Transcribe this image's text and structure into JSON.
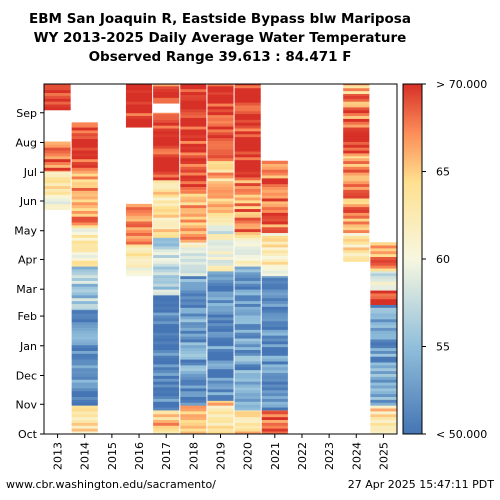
{
  "chart_data": {
    "type": "heatmap",
    "title": "EBM San Joaquin R, Eastside Bypass blw Mariposa",
    "subtitle": "WY 2013-2025 Daily Average Water Temperature",
    "range_text": "Observed Range 39.613 : 84.471 F",
    "x_categories": [
      "2013",
      "2014",
      "2015",
      "2016",
      "2017",
      "2018",
      "2019",
      "2020",
      "2021",
      "2022",
      "2023",
      "2024",
      "2025"
    ],
    "y_months": [
      "Oct",
      "Nov",
      "Dec",
      "Jan",
      "Feb",
      "Mar",
      "Apr",
      "May",
      "Jun",
      "Jul",
      "Aug",
      "Sep"
    ],
    "colorbar": {
      "min": 50,
      "max": 70,
      "min_label": "< 50.000",
      "max_label": "> 70.000",
      "ticks": [
        {
          "value": 70,
          "label": "> 70.000"
        },
        {
          "value": 65,
          "label": "65"
        },
        {
          "value": 60,
          "label": "60"
        },
        {
          "value": 55,
          "label": "55"
        },
        {
          "value": 50,
          "label": "< 50.000"
        }
      ],
      "colors": [
        "#4575b4",
        "#91bfdb",
        "#e0f3f8",
        "#fee090",
        "#fc8d59",
        "#d73027"
      ]
    },
    "units": "F",
    "coverage_days_note": "Day index 0 = Oct 1, 364 = Sep 30",
    "series": [
      {
        "year": "2013",
        "segments": [
          {
            "start": 234,
            "end": 274,
            "temp": 61
          },
          {
            "start": 250,
            "end": 275,
            "temp": 64
          },
          {
            "start": 275,
            "end": 305,
            "temp": 68
          },
          {
            "start": 338,
            "end": 365,
            "temp": 70
          }
        ]
      },
      {
        "year": "2014",
        "segments": [
          {
            "start": 0,
            "end": 30,
            "temp": 63
          },
          {
            "start": 30,
            "end": 130,
            "temp": 52
          },
          {
            "start": 130,
            "end": 175,
            "temp": 56
          },
          {
            "start": 175,
            "end": 215,
            "temp": 62
          },
          {
            "start": 215,
            "end": 275,
            "temp": 67
          },
          {
            "start": 275,
            "end": 325,
            "temp": 70
          }
        ]
      },
      {
        "year": "2016",
        "segments": [
          {
            "start": 165,
            "end": 195,
            "temp": 62
          },
          {
            "start": 195,
            "end": 240,
            "temp": 66
          },
          {
            "start": 320,
            "end": 365,
            "temp": 70
          }
        ]
      },
      {
        "year": "2017",
        "segments": [
          {
            "start": 0,
            "end": 25,
            "temp": 65
          },
          {
            "start": 25,
            "end": 145,
            "temp": 51
          },
          {
            "start": 145,
            "end": 205,
            "temp": 57
          },
          {
            "start": 205,
            "end": 265,
            "temp": 63
          },
          {
            "start": 265,
            "end": 335,
            "temp": 70
          },
          {
            "start": 345,
            "end": 365,
            "temp": 69
          }
        ]
      },
      {
        "year": "2018",
        "segments": [
          {
            "start": 0,
            "end": 30,
            "temp": 66
          },
          {
            "start": 30,
            "end": 165,
            "temp": 53
          },
          {
            "start": 165,
            "end": 200,
            "temp": 60
          },
          {
            "start": 200,
            "end": 255,
            "temp": 66
          },
          {
            "start": 255,
            "end": 365,
            "temp": 70
          }
        ]
      },
      {
        "year": "2019",
        "segments": [
          {
            "start": 0,
            "end": 35,
            "temp": 64
          },
          {
            "start": 35,
            "end": 170,
            "temp": 52
          },
          {
            "start": 170,
            "end": 225,
            "temp": 60
          },
          {
            "start": 225,
            "end": 285,
            "temp": 65
          },
          {
            "start": 285,
            "end": 365,
            "temp": 70
          }
        ]
      },
      {
        "year": "2020",
        "segments": [
          {
            "start": 0,
            "end": 25,
            "temp": 64
          },
          {
            "start": 25,
            "end": 175,
            "temp": 53
          },
          {
            "start": 175,
            "end": 205,
            "temp": 61
          },
          {
            "start": 205,
            "end": 265,
            "temp": 67
          },
          {
            "start": 265,
            "end": 365,
            "temp": 70
          }
        ]
      },
      {
        "year": "2021",
        "segments": [
          {
            "start": 0,
            "end": 25,
            "temp": 68
          },
          {
            "start": 25,
            "end": 165,
            "temp": 52
          },
          {
            "start": 165,
            "end": 210,
            "temp": 62
          },
          {
            "start": 210,
            "end": 285,
            "temp": 68
          }
        ]
      },
      {
        "year": "2024",
        "segments": [
          {
            "start": 180,
            "end": 210,
            "temp": 63
          },
          {
            "start": 210,
            "end": 290,
            "temp": 67
          },
          {
            "start": 290,
            "end": 355,
            "temp": 68
          },
          {
            "start": 355,
            "end": 365,
            "temp": 65
          }
        ]
      },
      {
        "year": "2025",
        "segments": [
          {
            "start": 0,
            "end": 30,
            "temp": 64
          },
          {
            "start": 30,
            "end": 135,
            "temp": 53
          },
          {
            "start": 135,
            "end": 150,
            "temp": 70
          },
          {
            "start": 150,
            "end": 170,
            "temp": 59
          },
          {
            "start": 170,
            "end": 200,
            "temp": 67
          }
        ]
      }
    ]
  },
  "footer": {
    "left": "www.cbr.washington.edu/sacramento/",
    "right": "27 Apr 2025 15:47:11 PDT"
  }
}
